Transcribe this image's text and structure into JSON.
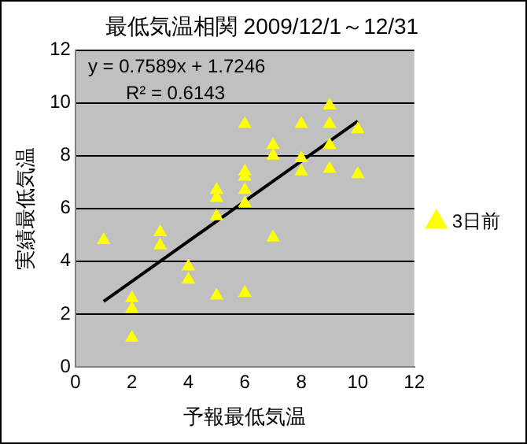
{
  "chart_data": {
    "type": "scatter",
    "title": "最低気温相関 2009/12/1～12/31",
    "xlabel": "予報最低気温",
    "ylabel": "実績最低気温",
    "xlim": [
      0,
      12
    ],
    "xticks": [
      0,
      2,
      4,
      6,
      8,
      10,
      12
    ],
    "ylim": [
      0,
      12
    ],
    "yticks": [
      0,
      2,
      4,
      6,
      8,
      10,
      12
    ],
    "grid": "y",
    "legend": "right",
    "series": [
      {
        "name": "3日前",
        "marker": "triangle",
        "color": "#ffff00",
        "x": [
          1,
          2,
          2,
          2,
          3,
          3,
          4,
          4,
          5,
          5,
          5,
          5,
          6,
          6,
          6,
          6,
          6,
          6,
          7,
          7,
          7,
          8,
          8,
          8,
          9,
          9,
          9,
          9,
          10,
          10
        ],
        "values": [
          4.8,
          2.6,
          2.2,
          1.1,
          5.1,
          4.6,
          3.8,
          3.3,
          6.7,
          6.4,
          5.7,
          2.7,
          9.2,
          7.4,
          7.2,
          6.7,
          6.2,
          2.8,
          8.4,
          8.0,
          4.9,
          9.2,
          7.9,
          7.4,
          9.9,
          9.2,
          8.4,
          7.5,
          9.0,
          7.3
        ]
      },
      {
        "type": "line",
        "marker": "none",
        "color": "#000000",
        "x": [
          1,
          10
        ],
        "values": [
          2.48,
          9.31
        ]
      }
    ],
    "annotations": [
      "y = 0.7589x + 1.7246",
      "R² = 0.6143"
    ]
  }
}
